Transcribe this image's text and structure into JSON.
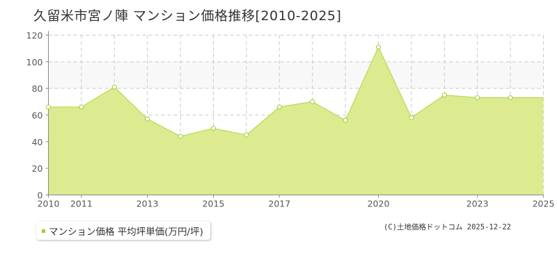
{
  "title": "久留米市宮ノ陣 マンション価格推移[2010-2025]",
  "legend": {
    "label": "マンション価格 平均坪単価(万円/坪)"
  },
  "credit": "(C)土地価格ドットコム 2025-12-22",
  "colors": {
    "fill": "#dceb90",
    "line": "#b9dc5a",
    "marker": "#9acd32",
    "band": "#f8f8f8"
  },
  "chart_data": {
    "type": "area",
    "title": "久留米市宮ノ陣 マンション価格推移[2010-2025]",
    "series": [
      {
        "name": "マンション価格 平均坪単価(万円/坪)",
        "x": [
          2010,
          2011,
          2012,
          2013,
          2014,
          2015,
          2016,
          2017,
          2018,
          2019,
          2020,
          2021,
          2022,
          2023,
          2024
        ],
        "values": [
          66,
          66,
          81,
          57,
          44,
          50,
          45,
          66,
          70,
          56,
          111,
          58,
          75,
          73,
          73
        ]
      }
    ],
    "x_ticks": [
      "2010",
      "2011",
      "2013",
      "2015",
      "2017",
      "2020",
      "2023",
      "2025"
    ],
    "y_ticks": [
      "0",
      "20",
      "40",
      "60",
      "80",
      "100",
      "120"
    ],
    "xlim": [
      2010,
      2025
    ],
    "ylim": [
      0,
      120
    ],
    "grid": true
  }
}
